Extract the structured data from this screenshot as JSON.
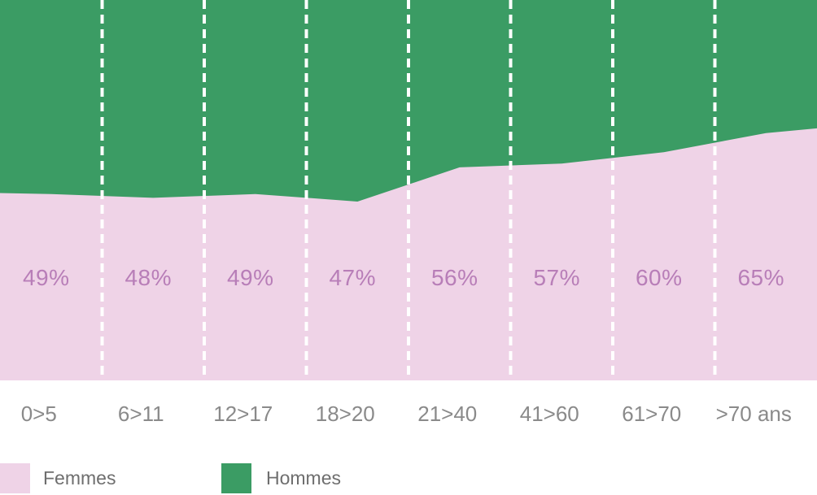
{
  "chart_data": {
    "type": "area",
    "stacked": true,
    "title": "",
    "xlabel": "",
    "ylabel": "",
    "ylim": [
      0,
      100
    ],
    "categories": [
      "0>5",
      "6>11",
      "12>17",
      "18>20",
      "21>40",
      "41>60",
      "61>70",
      ">70 ans"
    ],
    "series": [
      {
        "name": "Femmes",
        "values": [
          49,
          48,
          49,
          47,
          56,
          57,
          60,
          65
        ],
        "color": "#efd3e7"
      },
      {
        "name": "Hommes",
        "values": [
          51,
          52,
          51,
          53,
          44,
          43,
          40,
          35
        ],
        "color": "#3b9c64"
      }
    ],
    "value_labels": [
      "49%",
      "48%",
      "49%",
      "47%",
      "56%",
      "57%",
      "60%",
      "65%"
    ],
    "value_label_color": "#b87eb8",
    "axis_label_color": "#8a8a8a",
    "gridlines": "vertical-dashed-white",
    "gridline_color": "#ffffff",
    "legend_position": "bottom"
  },
  "legend": {
    "items": [
      {
        "label": "Femmes",
        "color": "#efd3e7"
      },
      {
        "label": "Hommes",
        "color": "#3b9c64"
      }
    ],
    "text_color": "#6e6e6e"
  }
}
